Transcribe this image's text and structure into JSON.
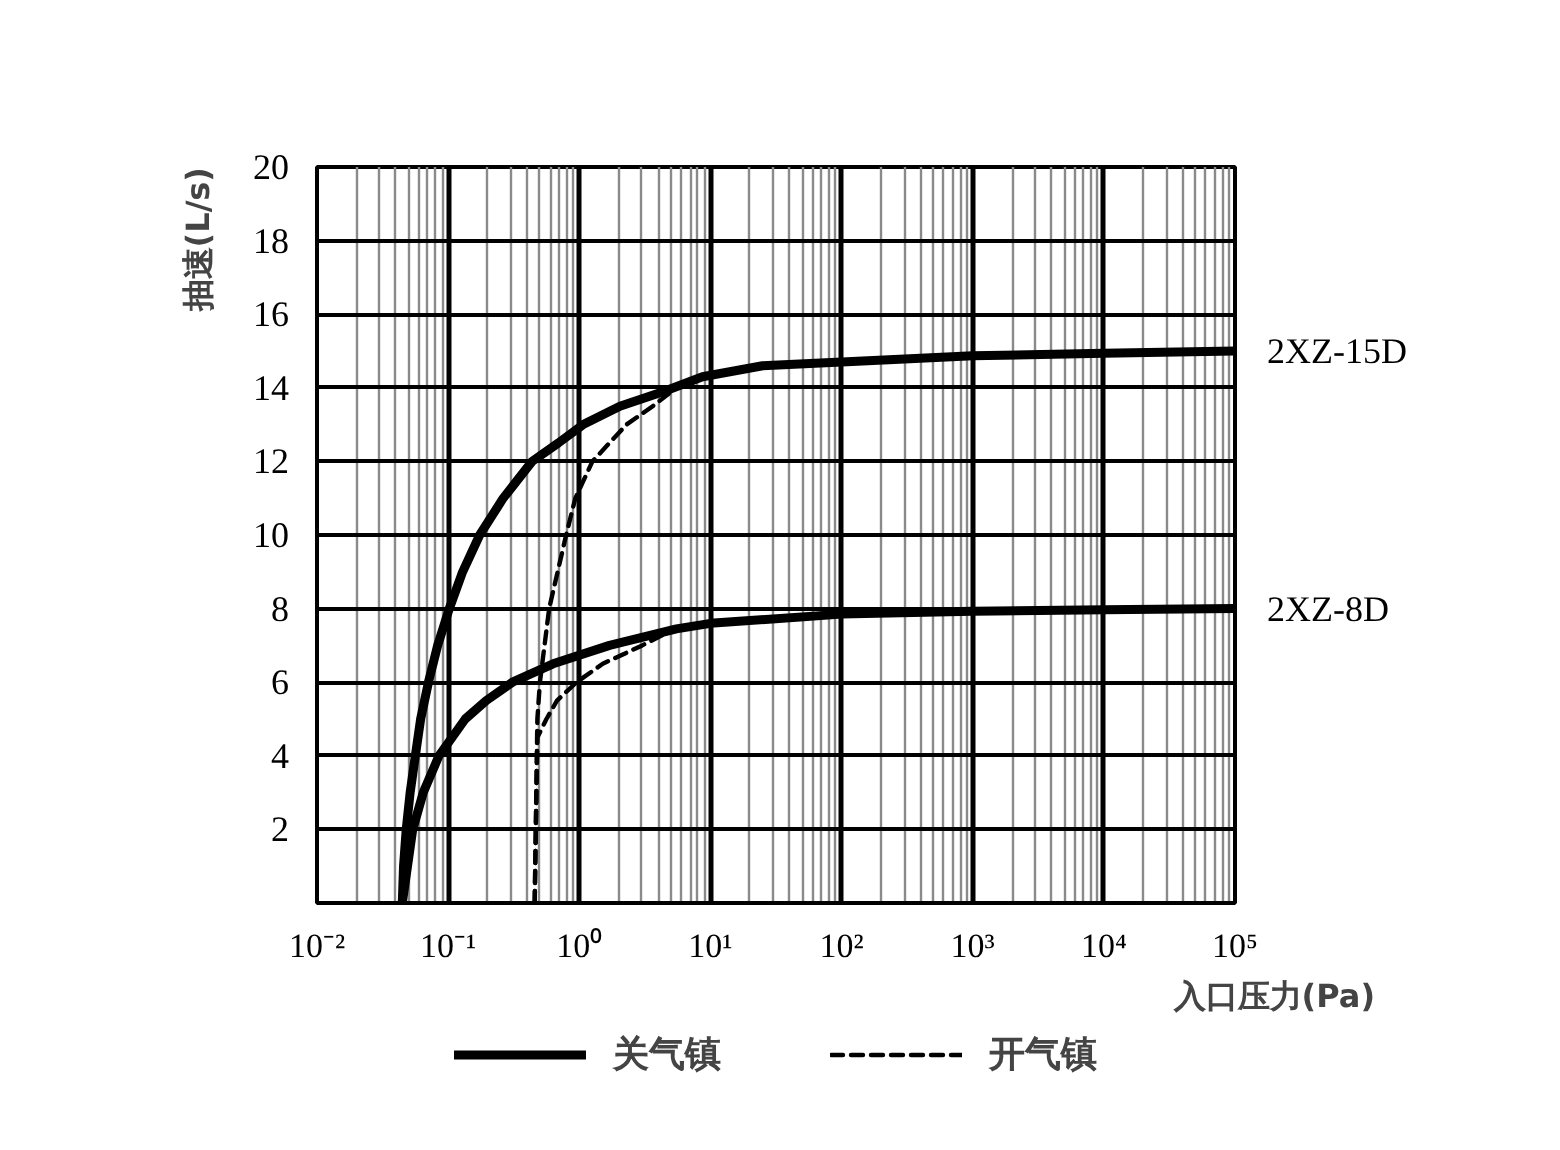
{
  "chart_data": {
    "type": "line",
    "xlabel": "入口压力(Pa)",
    "ylabel": "抽速(L/s)",
    "log": "x",
    "xlim": [
      0.01,
      100000
    ],
    "ylim": [
      0,
      20
    ],
    "xticks": [
      {
        "value": 0.01,
        "label": "10⁻²"
      },
      {
        "value": 0.1,
        "label": "10⁻¹"
      },
      {
        "value": 1,
        "label": "10⁰"
      },
      {
        "value": 10,
        "label": "10¹"
      },
      {
        "value": 100,
        "label": "10²"
      },
      {
        "value": 1000,
        "label": "10³"
      },
      {
        "value": 10000,
        "label": "10⁴"
      },
      {
        "value": 100000,
        "label": "10⁵"
      }
    ],
    "yticks": [
      2,
      4,
      6,
      8,
      10,
      12,
      14,
      16,
      18,
      20
    ],
    "grid": true,
    "legend": "bottom",
    "series": [
      {
        "name": "关气镇",
        "color": "#000000",
        "line_style": "solid",
        "x": [
          0.0447,
          0.0457,
          0.0479,
          0.0513,
          0.0562,
          0.0617,
          0.0708,
          0.0832,
          0.102,
          0.129,
          0.174,
          0.263,
          0.437,
          0.692,
          1.07,
          2.04,
          4.4,
          8.7,
          25,
          100,
          1000,
          10000,
          100000
        ],
        "values": [
          0,
          1,
          2,
          3,
          4,
          5,
          6,
          7,
          8,
          9,
          10,
          11,
          12,
          12.5,
          13,
          13.5,
          13.9,
          14.3,
          14.6,
          14.7,
          14.87,
          14.94,
          15.0
        ]
      },
      {
        "name": "开气镇",
        "color": "#000000",
        "line_style": "dashed",
        "x": [
          0.457,
          0.479,
          0.501,
          0.589,
          0.794,
          0.933,
          1.26,
          2.29,
          3.63,
          5.5
        ],
        "values": [
          0,
          5,
          6,
          8,
          10,
          11,
          12,
          13,
          13.5,
          14.0
        ]
      },
      {
        "color": "#000000",
        "line_style": "solid",
        "x": [
          0.0447,
          0.049,
          0.0537,
          0.0646,
          0.0851,
          0.135,
          0.195,
          0.309,
          0.631,
          1.7,
          5.5,
          10,
          100,
          1000,
          10000,
          100000
        ],
        "values": [
          0,
          1,
          2,
          3,
          4,
          5,
          5.5,
          6,
          6.5,
          7,
          7.45,
          7.6,
          7.85,
          7.93,
          7.97,
          8.0
        ]
      },
      {
        "color": "#000000",
        "line_style": "dashed",
        "x": [
          0.457,
          0.479,
          0.562,
          0.676,
          0.955,
          1.51,
          3.02,
          5.0
        ],
        "values": [
          0,
          4.5,
          5,
          5.5,
          6,
          6.5,
          7,
          7.4
        ]
      }
    ],
    "annotations": [
      {
        "text": "2XZ-15D",
        "x": 100000,
        "y": 15.0
      },
      {
        "text": "2XZ-8D",
        "x": 100000,
        "y": 8.0
      }
    ]
  }
}
